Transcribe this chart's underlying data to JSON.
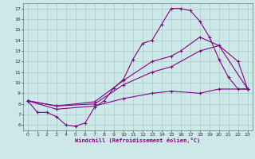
{
  "xlabel": "Windchill (Refroidissement éolien,°C)",
  "bg_color": "#cce8e8",
  "grid_color": "#aacccc",
  "line_color": "#880088",
  "xlim": [
    -0.5,
    23.5
  ],
  "ylim": [
    5.5,
    17.5
  ],
  "xticks": [
    0,
    1,
    2,
    3,
    4,
    5,
    6,
    7,
    8,
    9,
    10,
    11,
    12,
    13,
    14,
    15,
    16,
    17,
    18,
    19,
    20,
    21,
    22,
    23
  ],
  "yticks": [
    6,
    7,
    8,
    9,
    10,
    11,
    12,
    13,
    14,
    15,
    16,
    17
  ],
  "curve1_x": [
    0,
    1,
    2,
    3,
    4,
    5,
    6,
    7,
    8,
    9,
    10,
    11,
    12,
    13,
    14,
    15,
    16,
    17,
    18,
    19,
    20,
    21,
    22,
    23
  ],
  "curve1_y": [
    8.3,
    7.2,
    7.2,
    6.8,
    6.0,
    5.9,
    6.2,
    7.7,
    8.3,
    9.5,
    10.3,
    12.2,
    13.7,
    14.0,
    15.5,
    17.0,
    17.0,
    16.8,
    15.8,
    14.3,
    12.2,
    10.5,
    9.4,
    9.4
  ],
  "curve2_x": [
    0,
    3,
    7,
    10,
    13,
    15,
    16,
    18,
    20,
    22,
    23
  ],
  "curve2_y": [
    8.3,
    7.8,
    8.2,
    10.2,
    12.0,
    12.5,
    13.0,
    14.3,
    13.5,
    12.0,
    9.4
  ],
  "curve3_x": [
    0,
    3,
    7,
    10,
    13,
    15,
    18,
    20,
    23
  ],
  "curve3_y": [
    8.3,
    7.8,
    8.0,
    9.8,
    11.0,
    11.5,
    13.0,
    13.5,
    9.4
  ],
  "curve4_x": [
    0,
    3,
    7,
    10,
    13,
    15,
    18,
    20,
    23
  ],
  "curve4_y": [
    8.3,
    7.5,
    7.8,
    8.5,
    9.0,
    9.2,
    9.0,
    9.4,
    9.4
  ],
  "marker_size": 2.5,
  "linewidth": 0.8
}
